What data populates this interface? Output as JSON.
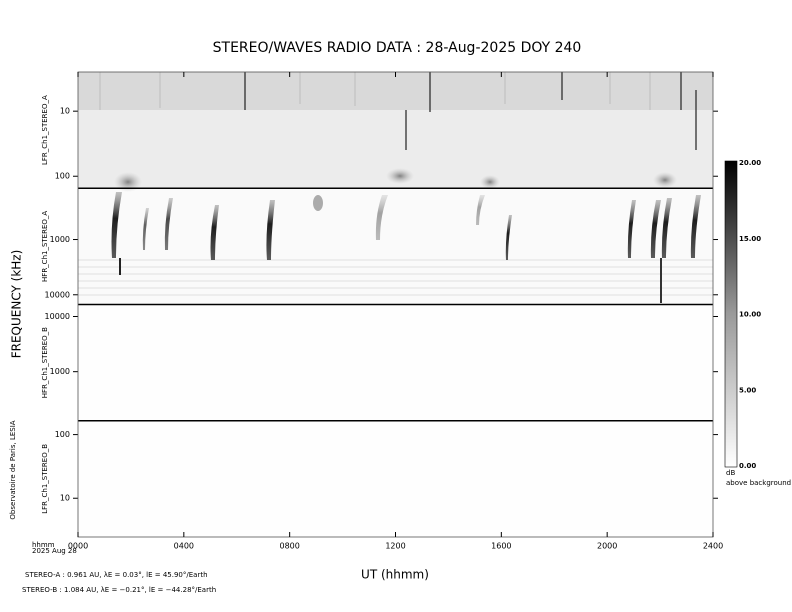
{
  "chart_data": {
    "type": "spectrogram",
    "title": "STEREO/WAVES  RADIO  DATA : 28-Aug-2025  DOY 240",
    "x_label": "UT (hhmm)",
    "y_label": "FREQUENCY (kHz)",
    "xlim": [
      0,
      2400
    ],
    "xticks": [
      {
        "value": 0,
        "label": "0000"
      },
      {
        "value": 400,
        "label": "0400"
      },
      {
        "value": 800,
        "label": "0800"
      },
      {
        "value": 1200,
        "label": "1200"
      },
      {
        "value": 1600,
        "label": "1600"
      },
      {
        "value": 2000,
        "label": "2000"
      },
      {
        "value": 2400,
        "label": "2400"
      }
    ],
    "log_scale": true,
    "panels": [
      {
        "name": "LFR_Ch1_STEREO_A",
        "ylim": [
          2.5,
          153
        ],
        "inverted": true,
        "yticks": [
          10,
          100
        ]
      },
      {
        "name": "HFR_Ch1_STEREO_A",
        "ylim": [
          118,
          15000
        ],
        "inverted": true,
        "yticks": [
          1000,
          10000
        ]
      },
      {
        "name": "HFR_Ch1_STEREO_B",
        "ylim": [
          129,
          16500
        ],
        "inverted": false,
        "yticks": [
          1000,
          10000
        ]
      },
      {
        "name": "LFR_Ch1_STEREO_B",
        "ylim": [
          2.46,
          165
        ],
        "inverted": false,
        "yticks": [
          10,
          100
        ]
      }
    ],
    "colorbar": {
      "lim": [
        0,
        20
      ],
      "ticks": [
        {
          "value": 20,
          "label": "20.00"
        },
        {
          "value": 15,
          "label": "15.00"
        },
        {
          "value": 10,
          "label": "10.00"
        },
        {
          "value": 5,
          "label": "5.00"
        },
        {
          "value": 0,
          "label": "0.00"
        }
      ],
      "label": "dB",
      "sublabel": "above background"
    },
    "x_unit_label": "hhmm",
    "date_label": "2025 Aug 28",
    "credit": "Observatoire de Paris, LESIA",
    "footer": [
      "STEREO-A : 0.961 AU, λE = 0.03°, lE = 45.90°/Earth",
      "STEREO-B : 1.084 AU, λE = −0.21°, lE = −44.28°/Earth"
    ]
  }
}
